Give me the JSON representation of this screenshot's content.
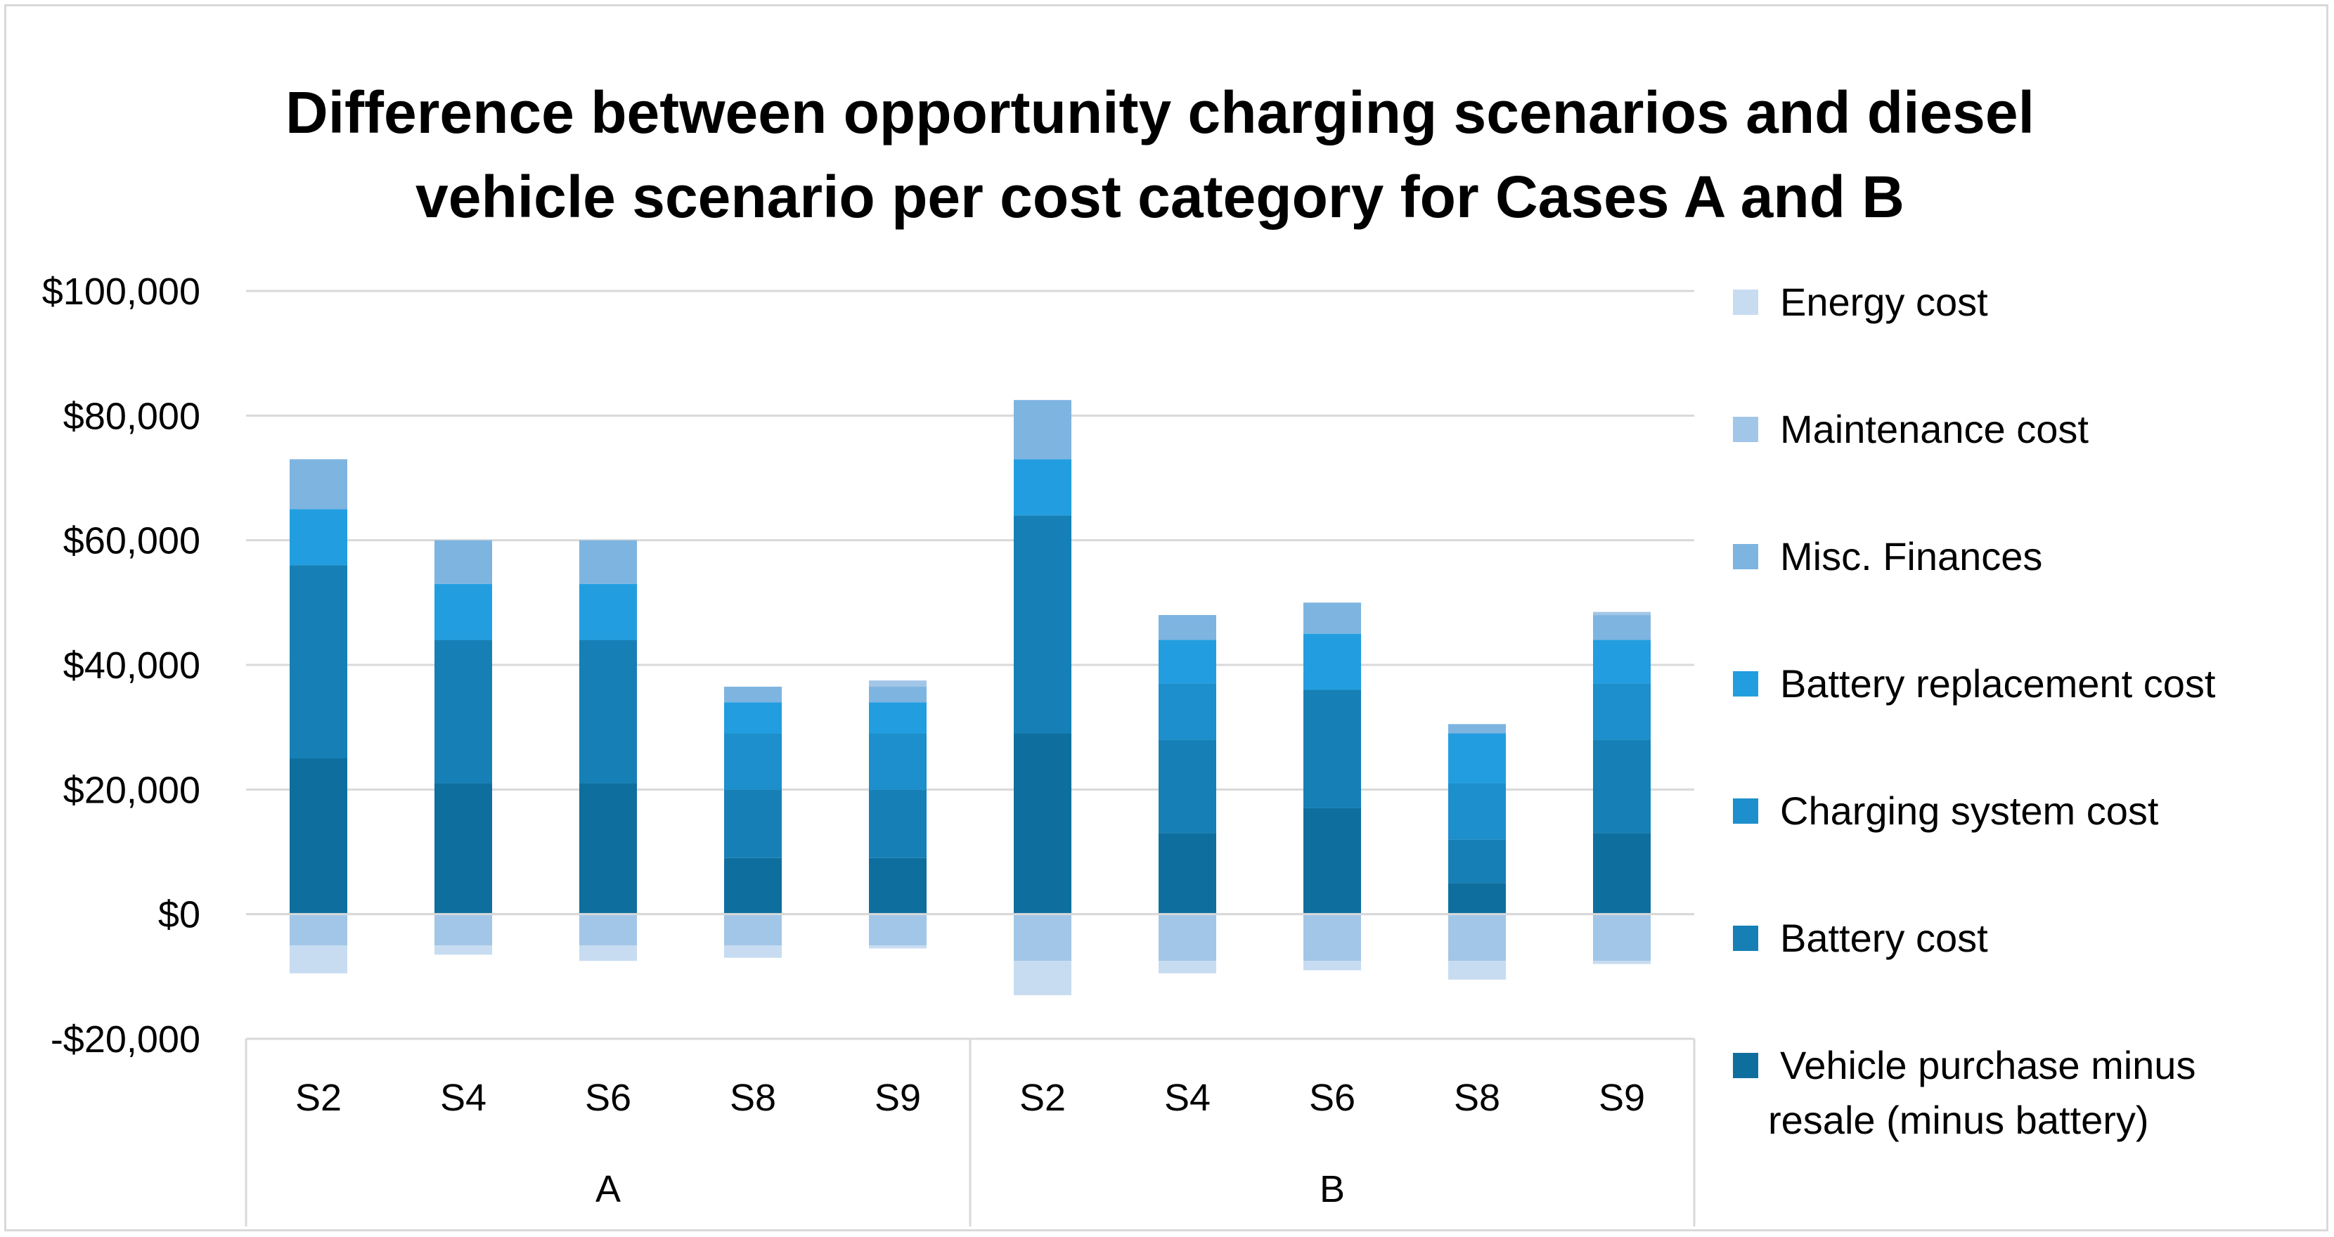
{
  "chart_data": {
    "type": "bar",
    "stacked": true,
    "title": "Difference between opportunity charging scenarios and diesel vehicle scenario per cost category for Cases A and B",
    "title_lines": [
      "Difference between opportunity charging scenarios and diesel",
      "vehicle scenario per cost category for Cases A and B"
    ],
    "xlabel": "",
    "ylabel": "",
    "ylim": [
      -20000,
      100000
    ],
    "yticks": [
      -20000,
      0,
      20000,
      40000,
      60000,
      80000,
      100000
    ],
    "ytick_labels": [
      "-$20,000",
      "$0",
      "$20,000",
      "$40,000",
      "$60,000",
      "$80,000",
      "$100,000"
    ],
    "groups": [
      {
        "name": "A",
        "categories": [
          "S2",
          "S4",
          "S6",
          "S8",
          "S9"
        ]
      },
      {
        "name": "B",
        "categories": [
          "S2",
          "S4",
          "S6",
          "S8",
          "S9"
        ]
      }
    ],
    "categories": [
      "A-S2",
      "A-S4",
      "A-S6",
      "A-S8",
      "A-S9",
      "B-S2",
      "B-S4",
      "B-S6",
      "B-S8",
      "B-S9"
    ],
    "legend_position": "right",
    "series": [
      {
        "name": "Vehicle purchase minus resale (minus battery)",
        "legend_lines": [
          "Vehicle purchase minus",
          "resale (minus battery)"
        ],
        "color": "#0e6f9e",
        "values": [
          25000,
          21000,
          21000,
          9000,
          9000,
          29000,
          13000,
          17000,
          5000,
          13000
        ]
      },
      {
        "name": "Battery cost",
        "color": "#1680b6",
        "values": [
          31000,
          23000,
          23000,
          11000,
          11000,
          35000,
          15000,
          19000,
          7000,
          15000
        ]
      },
      {
        "name": "Charging system cost",
        "color": "#1c8fcc",
        "values": [
          0,
          0,
          0,
          9000,
          9000,
          0,
          9000,
          0,
          9000,
          9000
        ]
      },
      {
        "name": "Battery replacement cost",
        "color": "#229ee0",
        "values": [
          9000,
          9000,
          9000,
          5000,
          5000,
          9000,
          7000,
          9000,
          8000,
          7000
        ]
      },
      {
        "name": "Misc. Finances",
        "color": "#7eb4e0",
        "values": [
          8000,
          7000,
          7000,
          2500,
          2500,
          9500,
          4000,
          5000,
          1500,
          4000
        ]
      },
      {
        "name": "Maintenance cost",
        "color": "#a2c6e7",
        "values": [
          -5000,
          -5000,
          -5000,
          -5000,
          -5000,
          -7500,
          -7500,
          -7500,
          -7500,
          -7500
        ]
      },
      {
        "name": "Energy cost",
        "color": "#c7dcf1",
        "values": [
          -4500,
          -1500,
          -2500,
          -2000,
          -500,
          -5500,
          -2000,
          -1500,
          -3000,
          -500
        ]
      }
    ],
    "misc_small_top": [
      0,
      0,
      0,
      0,
      1000,
      0,
      0,
      0,
      0,
      500
    ]
  }
}
